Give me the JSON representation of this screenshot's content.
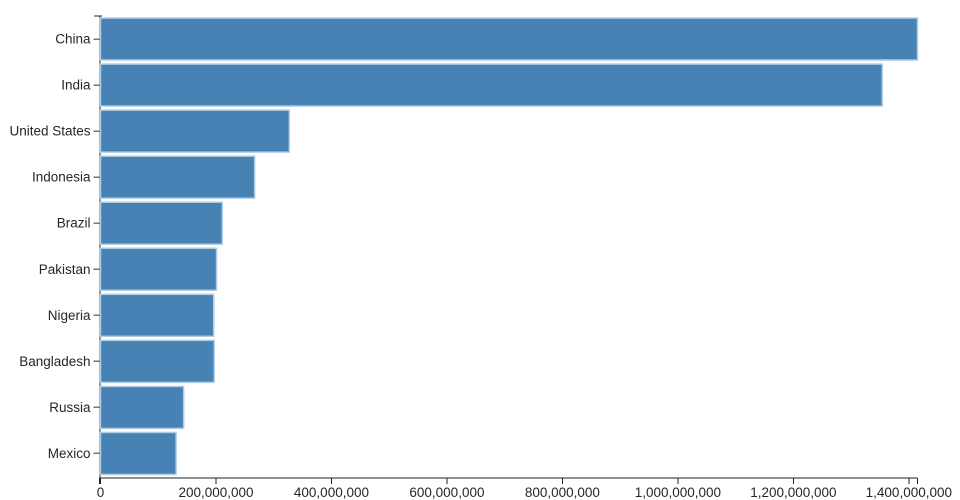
{
  "chart_data": {
    "type": "bar",
    "orientation": "horizontal",
    "title": "",
    "xlabel": "",
    "ylabel": "",
    "categories": [
      "China",
      "India",
      "United States",
      "Indonesia",
      "Brazil",
      "Pakistan",
      "Nigeria",
      "Bangladesh",
      "Russia",
      "Mexico"
    ],
    "values": [
      1415000000,
      1354000000,
      327000000,
      267000000,
      211000000,
      201000000,
      196000000,
      197000000,
      144000000,
      131000000
    ],
    "xlim": [
      0,
      1415000000
    ],
    "x_tick_step": 200000000,
    "x_tick_labels": [
      "0",
      "200,000,000",
      "400,000,000",
      "600,000,000",
      "800,000,000",
      "1,000,000,000",
      "1,200,000,000",
      "1,400,000,000"
    ],
    "grid": false,
    "legend": false,
    "bar_color": "#4682b4",
    "bar_stroke_color": "#b3cce2",
    "axis_color": "#222222",
    "y_tick_color": "#757575",
    "text_color": "#262626"
  }
}
